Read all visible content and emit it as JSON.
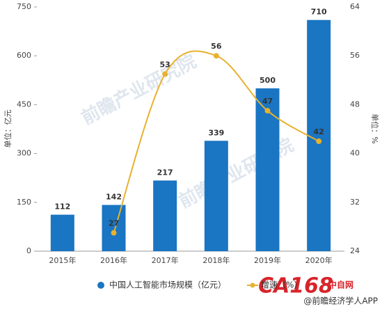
{
  "chart_data": {
    "type": "bar",
    "categories": [
      "2015年",
      "2016年",
      "2017年",
      "2018年",
      "2019年",
      "2020年"
    ],
    "series": [
      {
        "name": "中国人工智能市场规模（亿元）",
        "color": "#1a75c2",
        "type": "bar",
        "values": [
          112,
          142,
          217,
          339,
          500,
          710
        ]
      },
      {
        "name": "增速（%）",
        "color": "#e8b130",
        "type": "line",
        "axis": "y2",
        "values": [
          null,
          27,
          53,
          56,
          47,
          42
        ]
      }
    ],
    "ylabel": "单位：亿元",
    "y2label": "单位：%",
    "ylim": [
      0,
      750
    ],
    "yticks": [
      0,
      150,
      300,
      450,
      600,
      750
    ],
    "y2lim": [
      24,
      64
    ],
    "y2ticks": [
      24,
      32,
      40,
      48,
      56,
      64
    ],
    "legend": "bottom"
  },
  "watermark": "前瞻产业研究院",
  "logo": "CA168",
  "logo_sub": "中自网",
  "footer": "@前瞻经济学人APP"
}
